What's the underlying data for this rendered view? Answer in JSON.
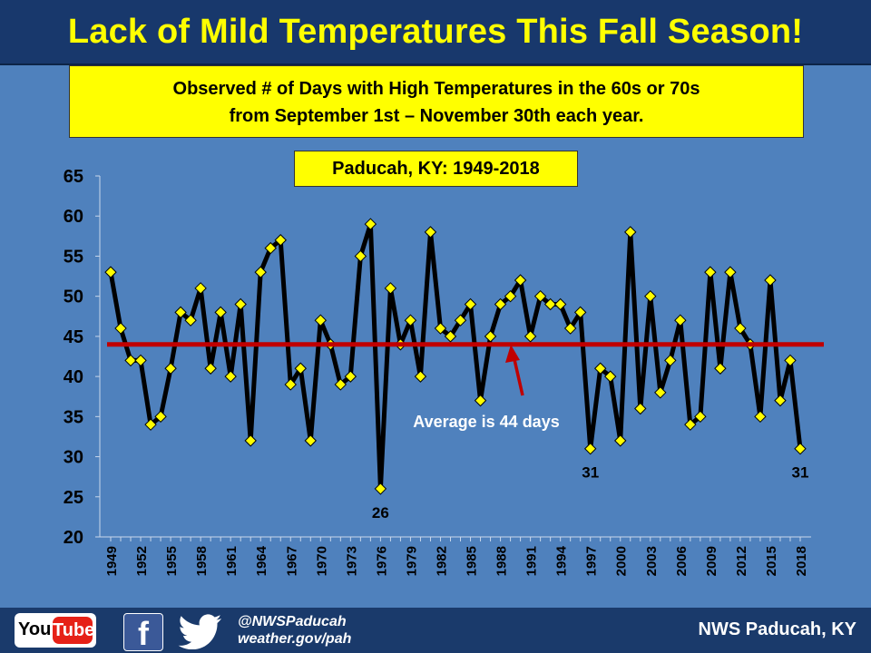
{
  "header": {
    "title": "Lack of Mild Temperatures This Fall Season!"
  },
  "subtitle": {
    "line1": "Observed # of Days with High Temperatures in the 60s or 70s",
    "line2": "from September 1st – November 30th each year."
  },
  "station": "Paducah, KY: 1949-2018",
  "footer": {
    "youtube_left": "You",
    "youtube_right": "Tube",
    "facebook_glyph": "f",
    "handle": "@NWSPaducah",
    "website": "weather.gov/pah",
    "office": "NWS Paducah, KY"
  },
  "colors": {
    "background": "#4f81bd",
    "banner": "#18386c",
    "title": "#ffff00",
    "line": "#000000",
    "marker": "#ffff00",
    "average": "#c00000"
  },
  "chart_data": {
    "type": "line",
    "title": "Observed # of Days with High Temperatures in the 60s or 70s from September 1st – November 30th each year.",
    "xlabel": "",
    "ylabel": "",
    "ylim": [
      20,
      65
    ],
    "yticks": [
      20,
      25,
      30,
      35,
      40,
      45,
      50,
      55,
      60,
      65
    ],
    "xlim": [
      1949,
      2018
    ],
    "xticks": [
      1949,
      1952,
      1955,
      1958,
      1961,
      1964,
      1967,
      1970,
      1973,
      1976,
      1979,
      1982,
      1985,
      1988,
      1991,
      1994,
      1997,
      2000,
      2003,
      2006,
      2009,
      2012,
      2015,
      2018
    ],
    "grid": false,
    "legend": "none",
    "x": [
      1949,
      1950,
      1951,
      1952,
      1953,
      1954,
      1955,
      1956,
      1957,
      1958,
      1959,
      1960,
      1961,
      1962,
      1963,
      1964,
      1965,
      1966,
      1967,
      1968,
      1969,
      1970,
      1971,
      1972,
      1973,
      1974,
      1975,
      1976,
      1977,
      1978,
      1979,
      1980,
      1981,
      1982,
      1983,
      1984,
      1985,
      1986,
      1987,
      1988,
      1989,
      1990,
      1991,
      1992,
      1993,
      1994,
      1995,
      1996,
      1997,
      1998,
      1999,
      2000,
      2001,
      2002,
      2003,
      2004,
      2005,
      2006,
      2007,
      2008,
      2009,
      2010,
      2011,
      2012,
      2013,
      2014,
      2015,
      2016,
      2017,
      2018
    ],
    "series": [
      {
        "values": [
          53,
          46,
          42,
          42,
          34,
          35,
          41,
          48,
          47,
          51,
          41,
          48,
          40,
          49,
          32,
          53,
          56,
          57,
          39,
          41,
          32,
          47,
          44,
          39,
          40,
          55,
          59,
          26,
          51,
          44,
          47,
          40,
          58,
          46,
          45,
          47,
          49,
          37,
          45,
          49,
          50,
          52,
          45,
          50,
          49,
          49,
          46,
          48,
          31,
          41,
          40,
          32,
          58,
          36,
          50,
          38,
          42,
          47,
          34,
          35,
          53,
          41,
          53,
          46,
          44,
          35,
          52,
          37,
          42,
          31
        ]
      }
    ],
    "average": {
      "value": 44,
      "label": "Average is 44 days"
    },
    "annotations": [
      {
        "x": 1976,
        "y": 26,
        "text": "26"
      },
      {
        "x": 1997,
        "y": 31,
        "text": "31"
      },
      {
        "x": 2018,
        "y": 31,
        "text": "31"
      }
    ]
  }
}
